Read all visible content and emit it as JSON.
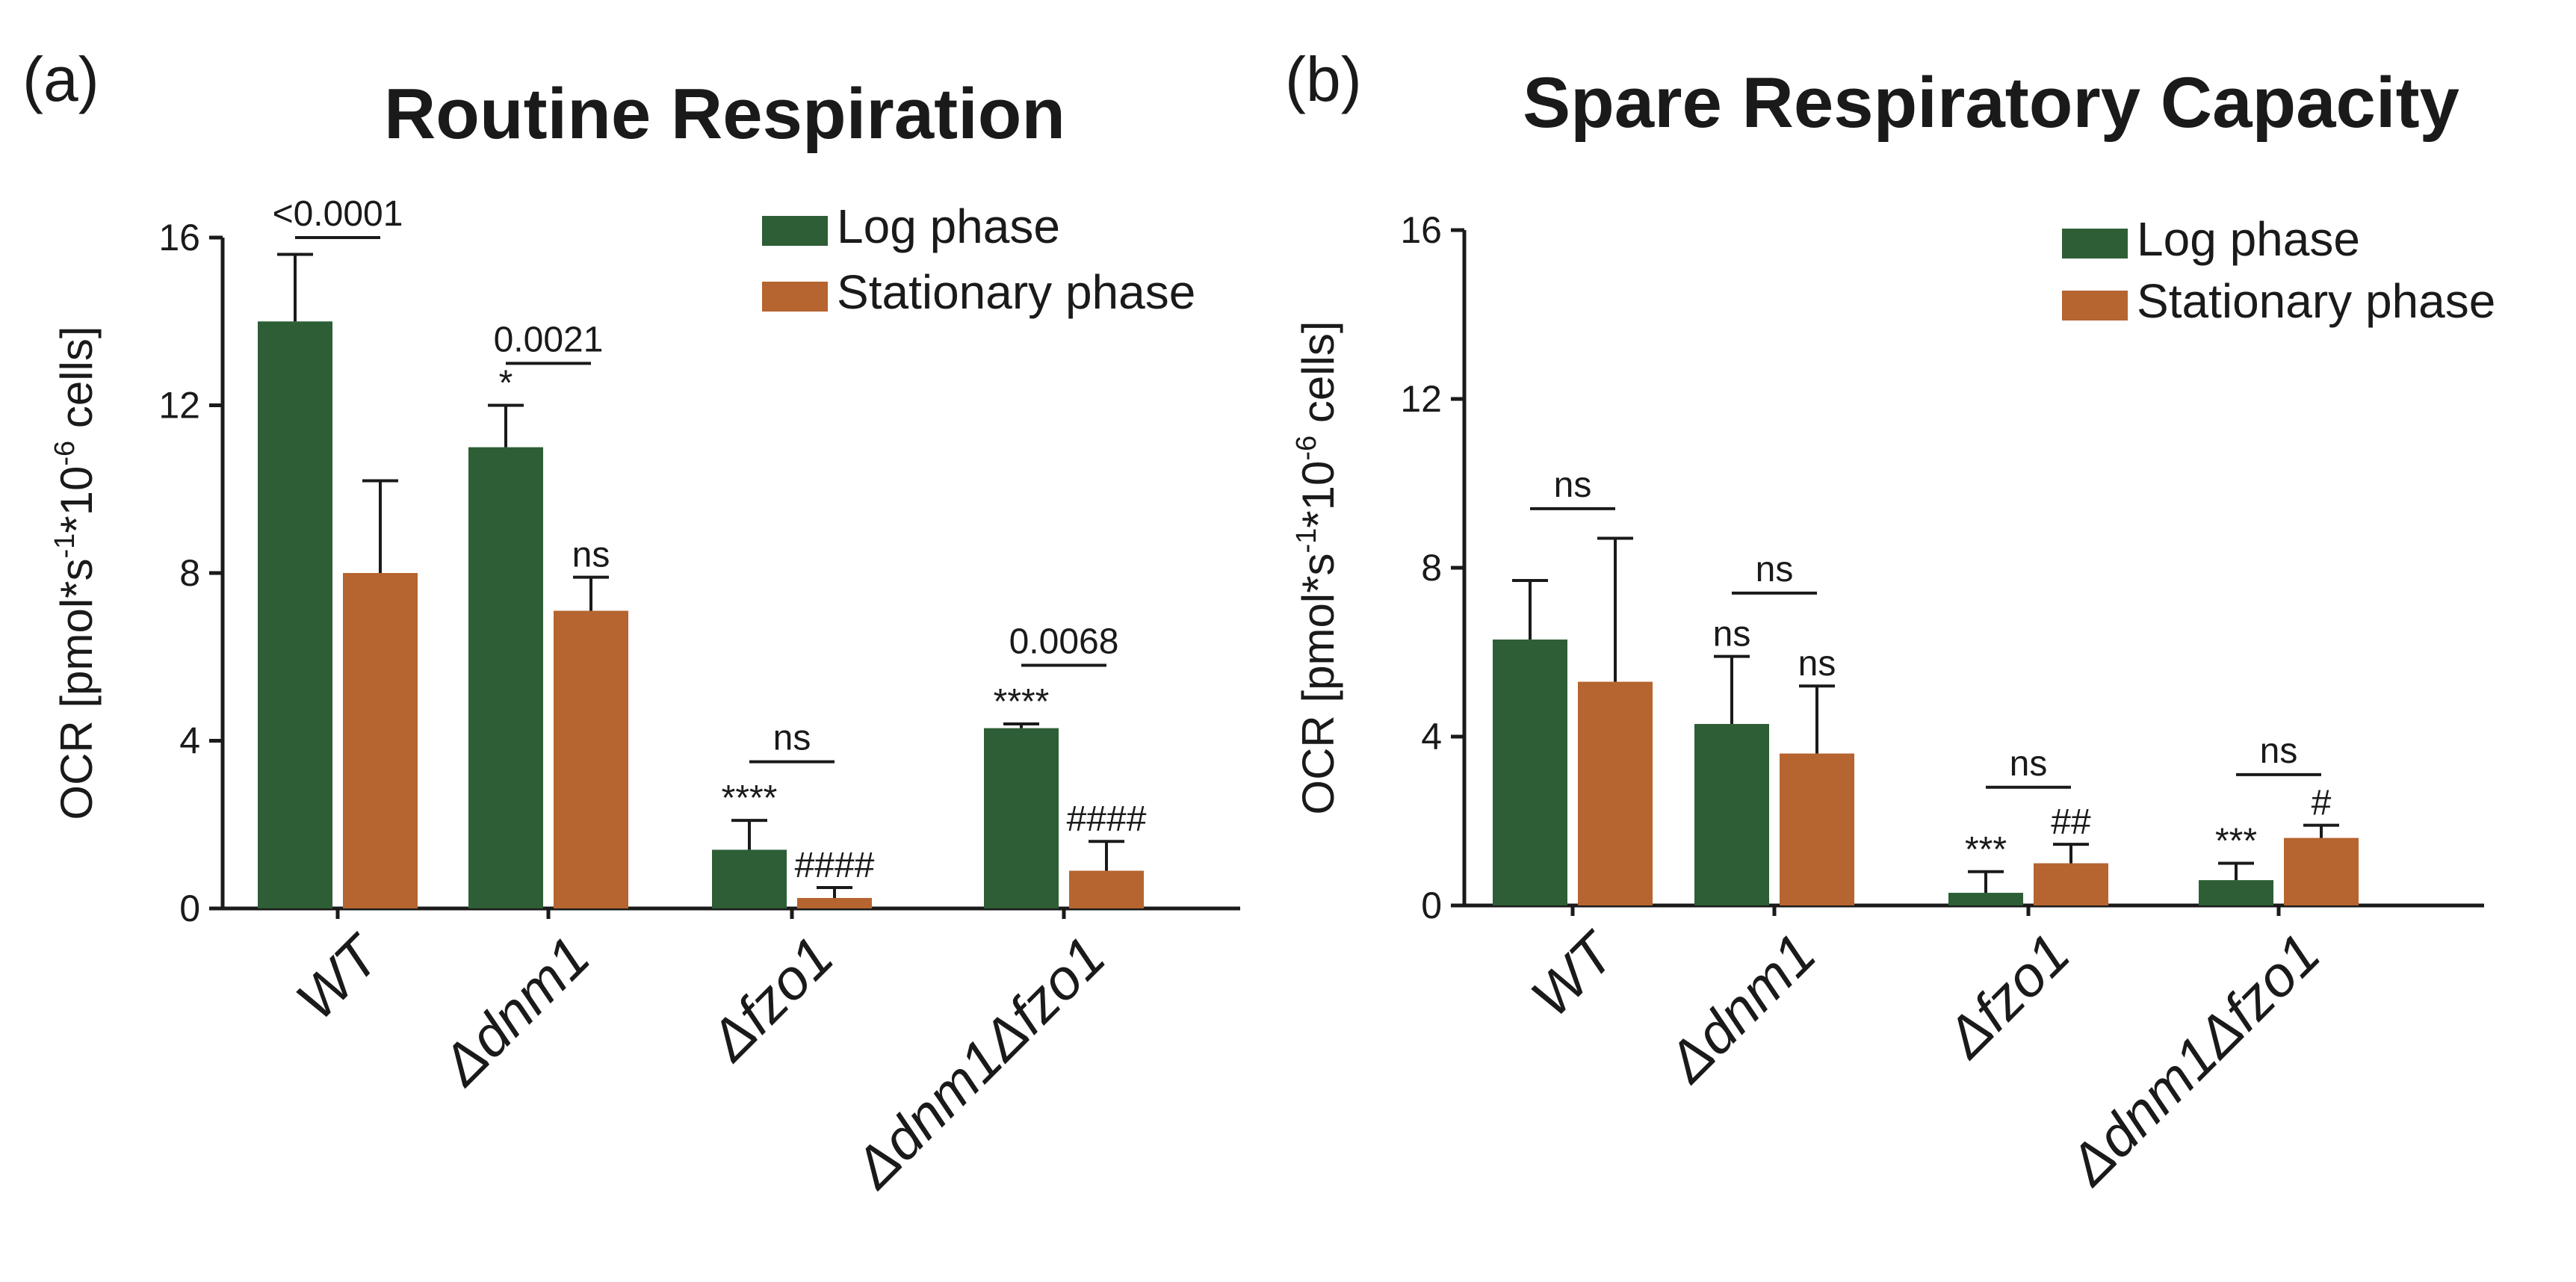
{
  "colors": {
    "log": "#2d5e35",
    "stationary": "#b66430"
  },
  "chart_data": [
    {
      "type": "bar",
      "panel_label": "(a)",
      "title": "Routine Respiration",
      "ylabel_main": "OCR [pmol*s",
      "ylabel_sup1": "-1",
      "ylabel_mid": "*10",
      "ylabel_sup2": "-6",
      "ylabel_end": " cells]",
      "ylim": [
        0,
        16
      ],
      "yticks": [
        "0",
        "4",
        "8",
        "12",
        "16"
      ],
      "categories": [
        "WT",
        "Δdnm1",
        "Δfzo1",
        "Δdnm1Δfzo1"
      ],
      "legend_position": "top-right",
      "series": [
        {
          "name": "Log phase",
          "values": [
            14.0,
            11.0,
            1.4,
            4.3
          ],
          "errors": [
            1.6,
            1.0,
            0.7,
            0.1
          ],
          "annotations": [
            "",
            "*",
            "****",
            "****"
          ]
        },
        {
          "name": "Stationary phase",
          "values": [
            8.0,
            7.1,
            0.25,
            0.9
          ],
          "errors": [
            2.2,
            0.8,
            0.25,
            0.7
          ],
          "annotations": [
            "",
            "ns",
            "####",
            "####"
          ]
        }
      ],
      "brackets": [
        "<0.0001",
        "0.0021",
        "ns",
        "0.0068"
      ],
      "bracket_heights": [
        16.0,
        13.0,
        3.5,
        5.8
      ]
    },
    {
      "type": "bar",
      "panel_label": "(b)",
      "title": "Spare Respiratory Capacity",
      "ylabel_main": "OCR [pmol*s",
      "ylabel_sup1": "-1",
      "ylabel_mid": "*10",
      "ylabel_sup2": "-6",
      "ylabel_end": " cells]",
      "ylim": [
        0,
        16
      ],
      "yticks": [
        "0",
        "4",
        "8",
        "12",
        "16"
      ],
      "categories": [
        "WT",
        "Δdnm1",
        "Δfzo1",
        "Δdnm1Δfzo1"
      ],
      "legend_position": "top-right",
      "series": [
        {
          "name": "Log phase",
          "values": [
            6.3,
            4.3,
            0.3,
            0.6
          ],
          "errors": [
            1.4,
            1.6,
            0.5,
            0.4
          ],
          "annotations": [
            "",
            "ns",
            "***",
            "***"
          ]
        },
        {
          "name": "Stationary phase",
          "values": [
            5.3,
            3.6,
            1.0,
            1.6
          ],
          "errors": [
            3.4,
            1.6,
            0.45,
            0.3
          ],
          "annotations": [
            "",
            "ns",
            "##",
            "#"
          ]
        }
      ],
      "brackets": [
        "ns",
        "ns",
        "ns",
        "ns"
      ],
      "bracket_heights": [
        9.4,
        7.4,
        2.8,
        3.1
      ]
    }
  ]
}
